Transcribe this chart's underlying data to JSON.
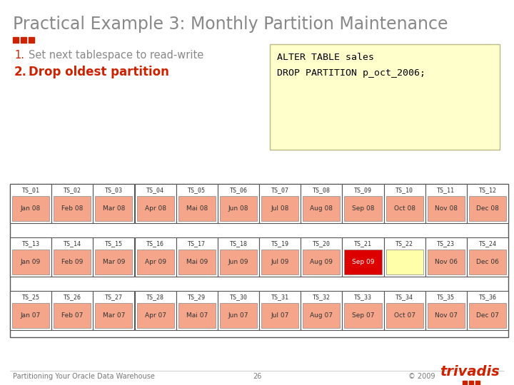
{
  "title": "Practical Example 3: Monthly Partition Maintenance",
  "bullet_color": "#cc2200",
  "step1_num": "1.",
  "step1_text": "Set next tablespace to read-write",
  "step1_num_color": "#cc2200",
  "step1_text_color": "#888888",
  "step2_num": "2.",
  "step2_text": "Drop oldest partition",
  "step2_color": "#cc2200",
  "code_box_color": "#ffffcc",
  "code_line1": "ALTER TABLE sales",
  "code_line2": "DROP PARTITION p_oct_2006;",
  "rows": [
    {
      "ts_labels": [
        "TS_01",
        "TS_02",
        "TS_03",
        "TS_04",
        "TS_05",
        "TS_06",
        "TS_07",
        "TS_08",
        "TS_09",
        "TS_10",
        "TS_11",
        "TS_12"
      ],
      "month_labels": [
        "Jan 08",
        "Feb 08",
        "Mar 08",
        "Apr 08",
        "Mai 08",
        "Jun 08",
        "Jul 08",
        "Aug 08",
        "Sep 08",
        "Oct 08",
        "Nov 08",
        "Dec 08"
      ],
      "cell_colors": [
        "#f4a58a",
        "#f4a58a",
        "#f4a58a",
        "#f4a58a",
        "#f4a58a",
        "#f4a58a",
        "#f4a58a",
        "#f4a58a",
        "#f4a58a",
        "#f4a58a",
        "#f4a58a",
        "#f4a58a"
      ]
    },
    {
      "ts_labels": [
        "TS_13",
        "TS_14",
        "TS_15",
        "TS_16",
        "TS_17",
        "TS_18",
        "TS_19",
        "TS_20",
        "TS_21",
        "TS_22",
        "TS_23",
        "TS_24"
      ],
      "month_labels": [
        "Jan 09",
        "Feb 09",
        "Mar 09",
        "Apr 09",
        "Mai 09",
        "Jun 09",
        "Jul 09",
        "Aug 09",
        "Sep 09",
        "",
        "Nov 06",
        "Dec 06"
      ],
      "cell_colors": [
        "#f4a58a",
        "#f4a58a",
        "#f4a58a",
        "#f4a58a",
        "#f4a58a",
        "#f4a58a",
        "#f4a58a",
        "#f4a58a",
        "#dd0000",
        "#ffffaa",
        "#f4a58a",
        "#f4a58a"
      ]
    },
    {
      "ts_labels": [
        "TS_25",
        "TS_26",
        "TS_27",
        "TS_28",
        "TS_29",
        "TS_30",
        "TS_31",
        "TS_32",
        "TS_33",
        "TS_34",
        "TS_35",
        "TS_36"
      ],
      "month_labels": [
        "Jan 07",
        "Feb 07",
        "Mar 07",
        "Apr 07",
        "Mai 07",
        "Jun 07",
        "Jul 07",
        "Aug 07",
        "Sep 07",
        "Oct 07",
        "Nov 07",
        "Dec 07"
      ],
      "cell_colors": [
        "#f4a58a",
        "#f4a58a",
        "#f4a58a",
        "#f4a58a",
        "#f4a58a",
        "#f4a58a",
        "#f4a58a",
        "#f4a58a",
        "#f4a58a",
        "#f4a58a",
        "#f4a58a",
        "#f4a58a"
      ]
    }
  ],
  "footer_left": "Partitioning Your Oracle Data Warehouse",
  "footer_center": "26",
  "footer_right": "© 2009",
  "trivadis_text": "trivadis",
  "trivadis_color": "#cc2200",
  "bg_color": "#ffffff",
  "title_color": "#888888",
  "title_fontsize": 17,
  "footer_fontsize": 7
}
